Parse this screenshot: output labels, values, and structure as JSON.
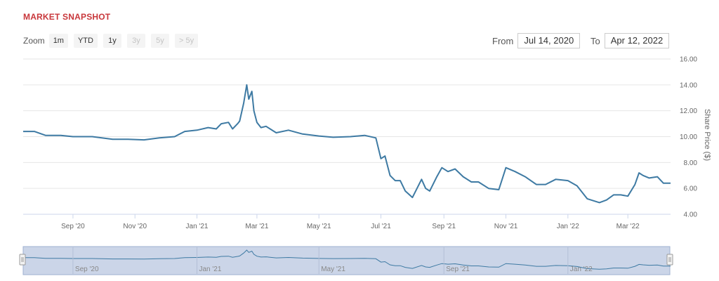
{
  "header": {
    "title": "MARKET SNAPSHOT"
  },
  "zoom": {
    "label": "Zoom",
    "buttons": [
      {
        "label": "1m",
        "enabled": true
      },
      {
        "label": "YTD",
        "enabled": true
      },
      {
        "label": "1y",
        "enabled": true
      },
      {
        "label": "3y",
        "enabled": false
      },
      {
        "label": "5y",
        "enabled": false
      },
      {
        "label": "> 5y",
        "enabled": false
      }
    ]
  },
  "range": {
    "from_label": "From",
    "from_value": "Jul 14, 2020",
    "to_label": "To",
    "to_value": "Apr 12, 2022"
  },
  "colors": {
    "line": "#3e7aa3",
    "title": "#c8373b",
    "grid": "#e6e6e6",
    "navigator_fill": "#cbd5e8"
  },
  "chart_data": {
    "type": "line",
    "title": "",
    "xlabel": "",
    "ylabel": "Share Price ($)",
    "ylim": [
      4,
      16
    ],
    "yticks": [
      "4.00",
      "6.00",
      "8.00",
      "10.00",
      "12.00",
      "14.00",
      "16.00"
    ],
    "x_tick_labels": [
      "Sep '20",
      "Nov '20",
      "Jan '21",
      "Mar '21",
      "May '21",
      "Jul '21",
      "Sep '21",
      "Nov '21",
      "Jan '22",
      "Mar '22"
    ],
    "x_tick_dates": [
      "2020-09-01",
      "2020-11-01",
      "2021-01-01",
      "2021-03-01",
      "2021-05-01",
      "2021-07-01",
      "2021-09-01",
      "2021-11-01",
      "2022-01-01",
      "2022-03-01"
    ],
    "xlim": [
      "2020-07-14",
      "2022-04-12"
    ],
    "grid": true,
    "series": [
      {
        "x": [
          "2020-07-14",
          "2020-07-25",
          "2020-08-05",
          "2020-08-20",
          "2020-09-01",
          "2020-09-20",
          "2020-10-10",
          "2020-10-25",
          "2020-11-10",
          "2020-11-25",
          "2020-12-10",
          "2020-12-20",
          "2021-01-01",
          "2021-01-12",
          "2021-01-20",
          "2021-01-25",
          "2021-02-01",
          "2021-02-05",
          "2021-02-10",
          "2021-02-12",
          "2021-02-16",
          "2021-02-19",
          "2021-02-21",
          "2021-02-24",
          "2021-02-26",
          "2021-03-01",
          "2021-03-05",
          "2021-03-10",
          "2021-03-20",
          "2021-04-01",
          "2021-04-15",
          "2021-05-01",
          "2021-05-15",
          "2021-06-01",
          "2021-06-15",
          "2021-06-26",
          "2021-07-01",
          "2021-07-05",
          "2021-07-10",
          "2021-07-15",
          "2021-07-20",
          "2021-07-25",
          "2021-08-01",
          "2021-08-10",
          "2021-08-14",
          "2021-08-18",
          "2021-08-25",
          "2021-08-30",
          "2021-09-05",
          "2021-09-12",
          "2021-09-20",
          "2021-09-28",
          "2021-10-05",
          "2021-10-15",
          "2021-10-25",
          "2021-11-01",
          "2021-11-10",
          "2021-11-20",
          "2021-12-01",
          "2021-12-10",
          "2021-12-20",
          "2022-01-01",
          "2022-01-10",
          "2022-01-20",
          "2022-02-01",
          "2022-02-08",
          "2022-02-15",
          "2022-02-22",
          "2022-03-01",
          "2022-03-08",
          "2022-03-12",
          "2022-03-16",
          "2022-03-22",
          "2022-03-30",
          "2022-04-05",
          "2022-04-12"
        ],
        "y": [
          10.4,
          10.4,
          10.1,
          10.1,
          10.0,
          10.0,
          9.8,
          9.8,
          9.75,
          9.9,
          10.0,
          10.4,
          10.5,
          10.7,
          10.6,
          11.0,
          11.1,
          10.6,
          11.0,
          11.2,
          12.6,
          14.0,
          12.9,
          13.5,
          12.0,
          11.1,
          10.7,
          10.8,
          10.3,
          10.5,
          10.2,
          10.05,
          9.95,
          10.0,
          10.1,
          9.9,
          8.3,
          8.5,
          7.0,
          6.6,
          6.6,
          5.8,
          5.3,
          6.7,
          6.0,
          5.8,
          6.9,
          7.6,
          7.3,
          7.5,
          6.9,
          6.5,
          6.5,
          6.0,
          5.9,
          7.6,
          7.3,
          6.9,
          6.3,
          6.3,
          6.7,
          6.6,
          6.2,
          5.2,
          4.9,
          5.1,
          5.5,
          5.5,
          5.4,
          6.3,
          7.2,
          7.0,
          6.8,
          6.9,
          6.4,
          6.4
        ]
      }
    ]
  }
}
